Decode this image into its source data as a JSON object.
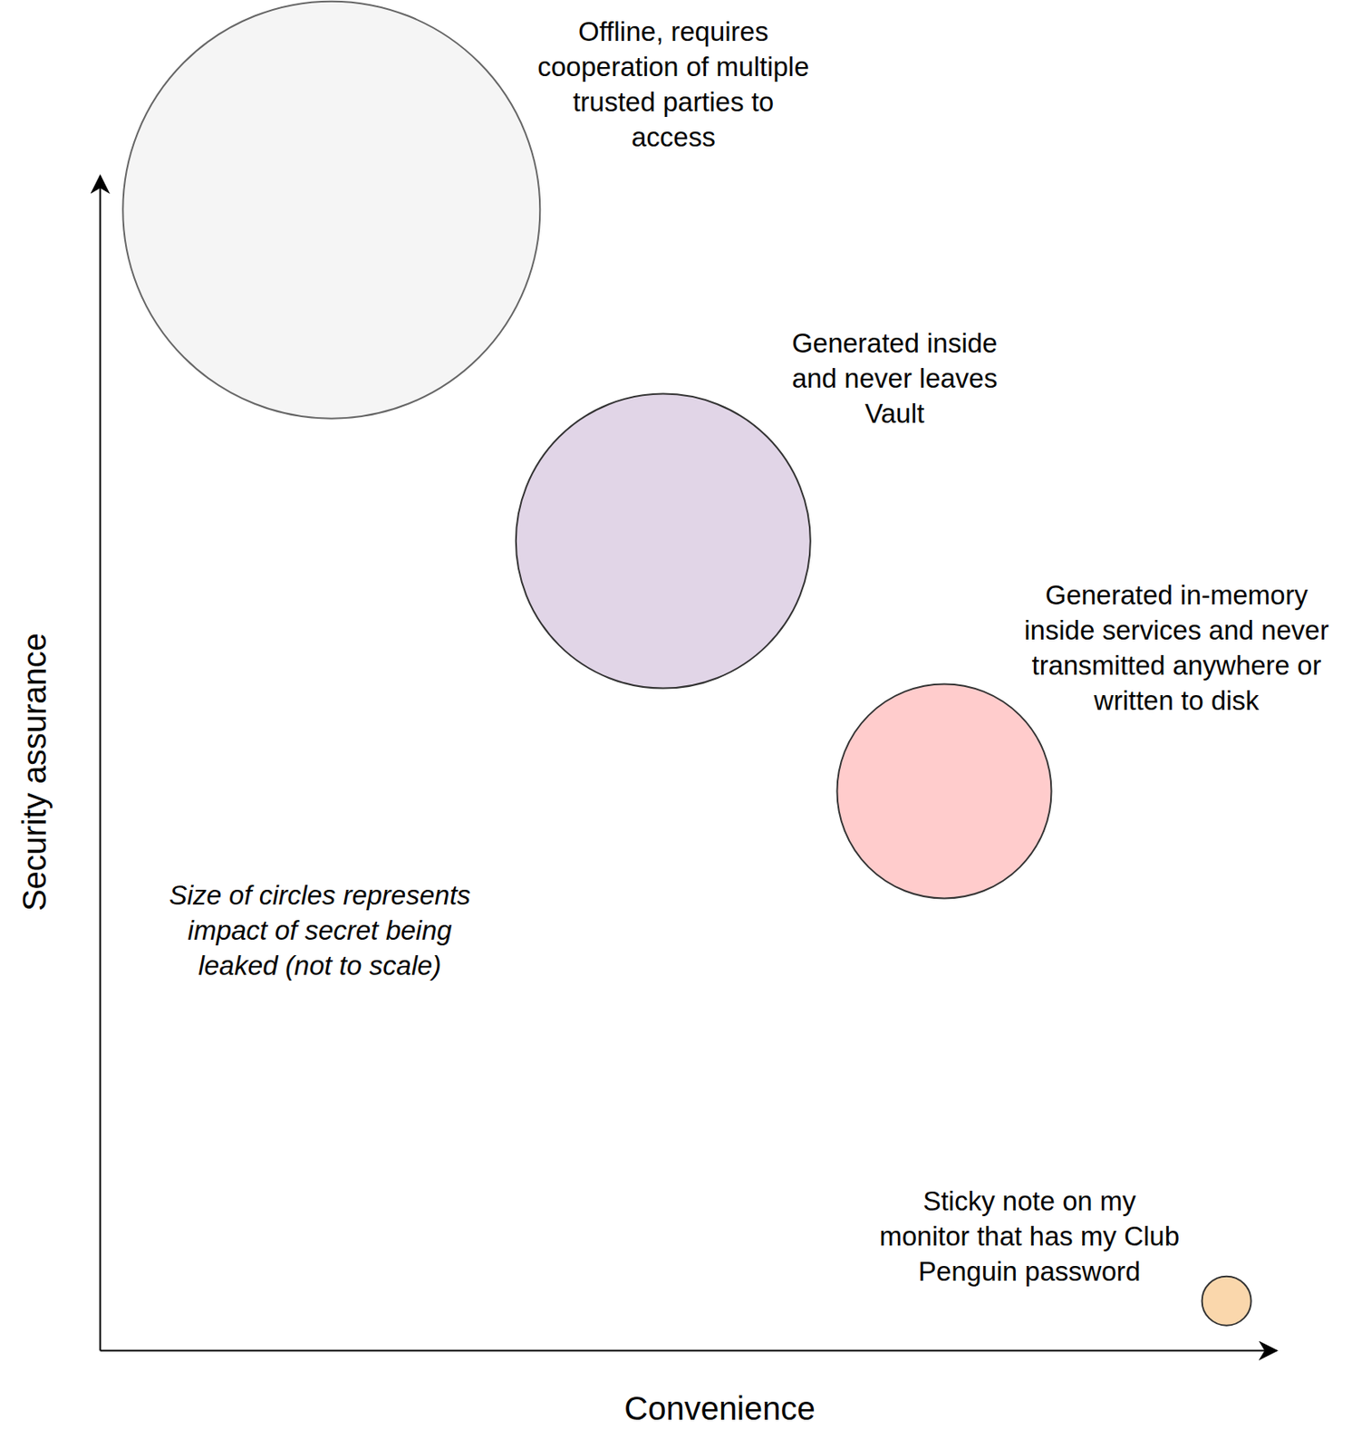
{
  "chart_data": {
    "type": "bubble",
    "x_label": "Convenience",
    "y_label": "Security assurance",
    "xlim": [
      0,
      100
    ],
    "ylim": [
      0,
      100
    ],
    "tick_labels": false,
    "grid": false,
    "x": [
      19.7,
      47.9,
      71.8,
      95.8
    ],
    "values": [
      97.1,
      68.9,
      47.6,
      4.2
    ],
    "sizes": [
      255,
      180,
      131,
      30
    ],
    "colors": [
      "#f5f5f5",
      "#e1d5e7",
      "#ffcccc",
      "#fad7ac"
    ],
    "labels": [
      [
        "Offline, requires",
        "cooperation of multiple",
        "trusted parties to",
        "access"
      ],
      [
        "Generated inside",
        "and never leaves",
        "Vault"
      ],
      [
        "Generated in-memory",
        "inside services and never",
        "transmitted anywhere or",
        "written to disk"
      ],
      [
        "Sticky note on my",
        "monitor that has my Club",
        "Penguin password"
      ]
    ],
    "annotation": [
      "Size of circles represents",
      "impact of secret being",
      "leaked (not to scale)"
    ]
  }
}
